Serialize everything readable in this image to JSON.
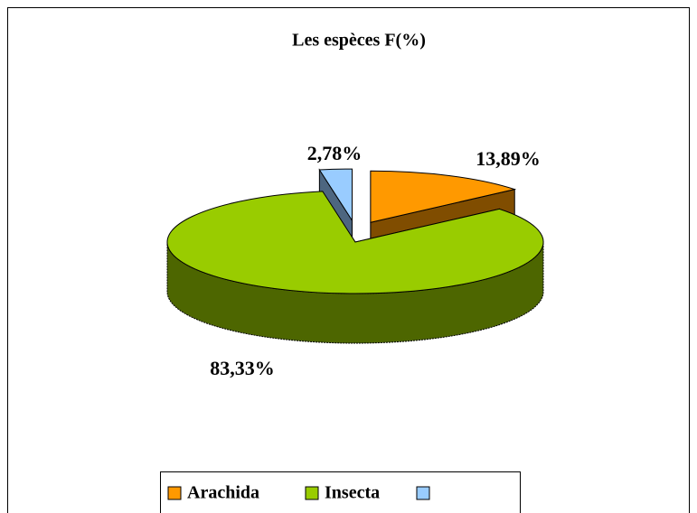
{
  "chart_data": {
    "type": "pie",
    "title": "Les espèces F(%)",
    "categories": [
      "Arachida",
      "Insecta",
      null
    ],
    "values": [
      13.89,
      83.33,
      2.78
    ],
    "value_labels": [
      "13,89%",
      "83,33%",
      "2,78%"
    ],
    "colors": [
      "#ff9900",
      "#99cc00",
      "#99ccff"
    ],
    "legend": "bottom"
  }
}
